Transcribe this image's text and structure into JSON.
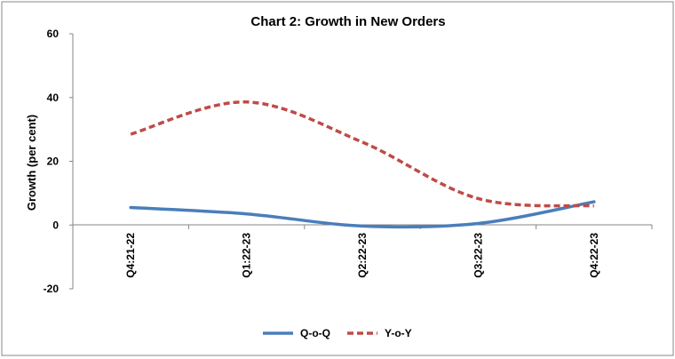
{
  "chart_data": {
    "type": "line",
    "title": "Chart 2: Growth in New Orders",
    "ylabel": "Growth (per cent)",
    "xlabel": "",
    "categories": [
      "Q4:21-22",
      "Q1:22-23",
      "Q2:22-23",
      "Q3:22-23",
      "Q4:22-23"
    ],
    "ylim": [
      -20,
      60
    ],
    "yticks": [
      "60",
      "40",
      "20",
      "0",
      "-20"
    ],
    "grid": false,
    "legend_position": "bottom",
    "series": [
      {
        "name": "Q-o-Q",
        "values": [
          5.5,
          3.5,
          -0.3,
          0.5,
          7.3
        ],
        "color": "#4a7ebb",
        "style": "solid"
      },
      {
        "name": "Y-o-Y",
        "values": [
          28.5,
          38.6,
          26.0,
          8.3,
          6.0
        ],
        "color": "#be4b48",
        "style": "dashed"
      }
    ]
  }
}
